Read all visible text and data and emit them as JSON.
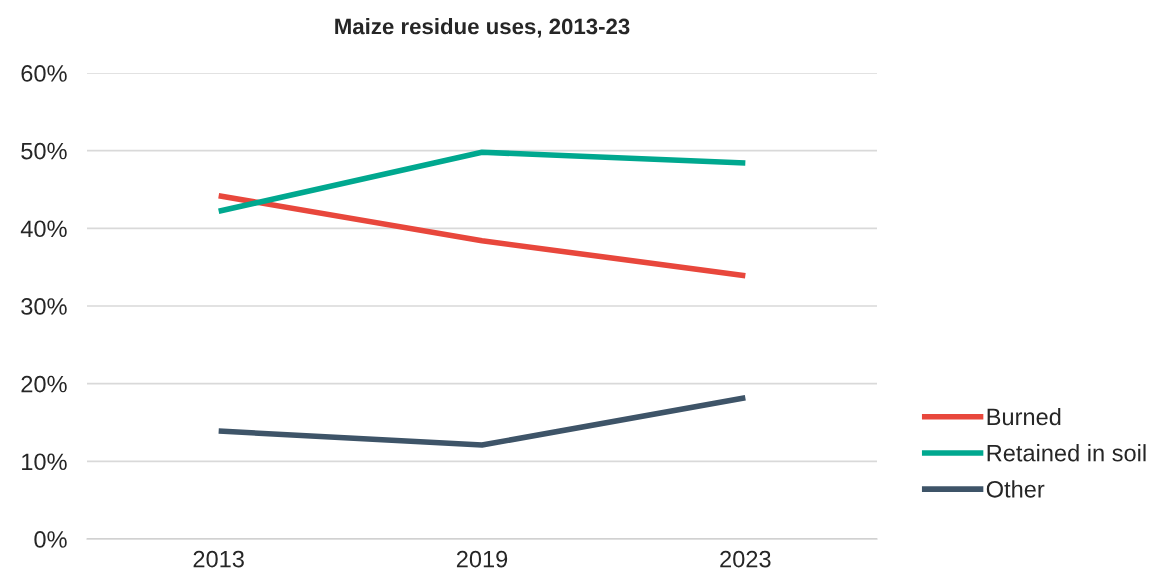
{
  "chart_data": {
    "type": "line",
    "title": "Maize residue uses, 2013-23",
    "categories": [
      "2013",
      "2019",
      "2023"
    ],
    "series": [
      {
        "name": "Burned",
        "color": "#e8473c",
        "values": [
          44.2,
          38.4,
          33.9
        ]
      },
      {
        "name": "Retained in soil",
        "color": "#00a88f",
        "values": [
          42.2,
          49.8,
          48.4
        ]
      },
      {
        "name": "Other",
        "color": "#3e5468",
        "values": [
          13.9,
          12.1,
          18.2
        ]
      }
    ],
    "ylim": [
      0,
      60
    ],
    "yticks": [
      {
        "value": 0,
        "label": "0%"
      },
      {
        "value": 10,
        "label": "10%"
      },
      {
        "value": 20,
        "label": "20%"
      },
      {
        "value": 30,
        "label": "30%"
      },
      {
        "value": 40,
        "label": "40%"
      },
      {
        "value": 50,
        "label": "50%"
      },
      {
        "value": 60,
        "label": "60%"
      }
    ],
    "grid": "y",
    "legend": "right",
    "marker": "none",
    "line_style": "solid"
  }
}
